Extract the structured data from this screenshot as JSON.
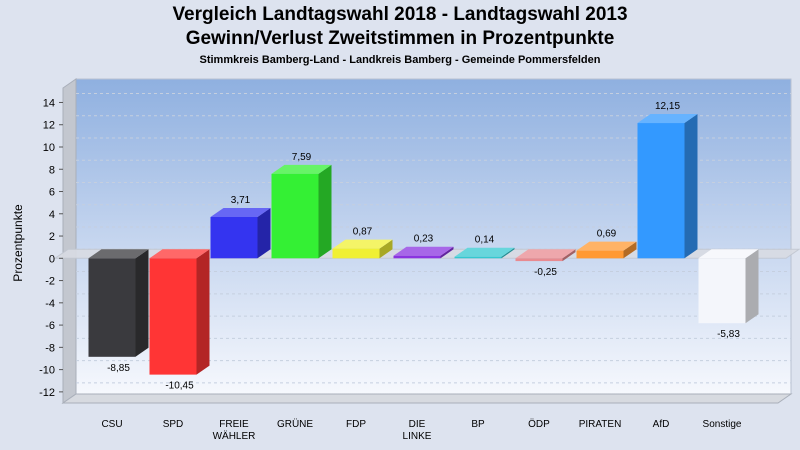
{
  "chart_data": {
    "type": "bar",
    "title": "Vergleich Landtagswahl 2018 - Landtagswahl 2013",
    "title2": "Gewinn/Verlust Zweitstimmen in Prozentpunkte",
    "subtitle": "Stimmkreis Bamberg-Land - Landkreis Bamberg - Gemeinde Pommersfelden",
    "ylabel": "Prozentpunkte",
    "xlabel": "",
    "ylim": [
      -12,
      14
    ],
    "yticks": [
      14,
      12,
      10,
      8,
      6,
      4,
      2,
      0,
      -2,
      -4,
      -6,
      -8,
      -10,
      -12
    ],
    "grid": true,
    "categories": [
      "CSU",
      "SPD",
      "FREIE WÄHLER",
      "GRÜNE",
      "FDP",
      "DIE LINKE",
      "BP",
      "ÖDP",
      "PIRATEN",
      "AfD",
      "Sonstige"
    ],
    "category_labels": [
      [
        "CSU"
      ],
      [
        "SPD"
      ],
      [
        "FREIE",
        "WÄHLER"
      ],
      [
        "GRÜNE"
      ],
      [
        "FDP"
      ],
      [
        "DIE",
        "LINKE"
      ],
      [
        "BP"
      ],
      [
        "ÖDP"
      ],
      [
        "PIRATEN"
      ],
      [
        "AfD"
      ],
      [
        "Sonstige"
      ]
    ],
    "values": [
      -8.85,
      -10.45,
      3.71,
      7.59,
      0.87,
      0.23,
      0.14,
      -0.25,
      0.69,
      12.15,
      -5.83
    ],
    "value_labels": [
      "-8,85",
      "-10,45",
      "3,71",
      "7,59",
      "0,87",
      "0,23",
      "0,14",
      "-0,25",
      "0,69",
      "12,15",
      "-5,83"
    ],
    "colors": [
      "#3a3a3e",
      "#ff3535",
      "#3434f0",
      "#34f034",
      "#f0f034",
      "#8a34e0",
      "#34c8d0",
      "#e88a90",
      "#ff9933",
      "#3399ff",
      "#f4f6fb"
    ]
  }
}
